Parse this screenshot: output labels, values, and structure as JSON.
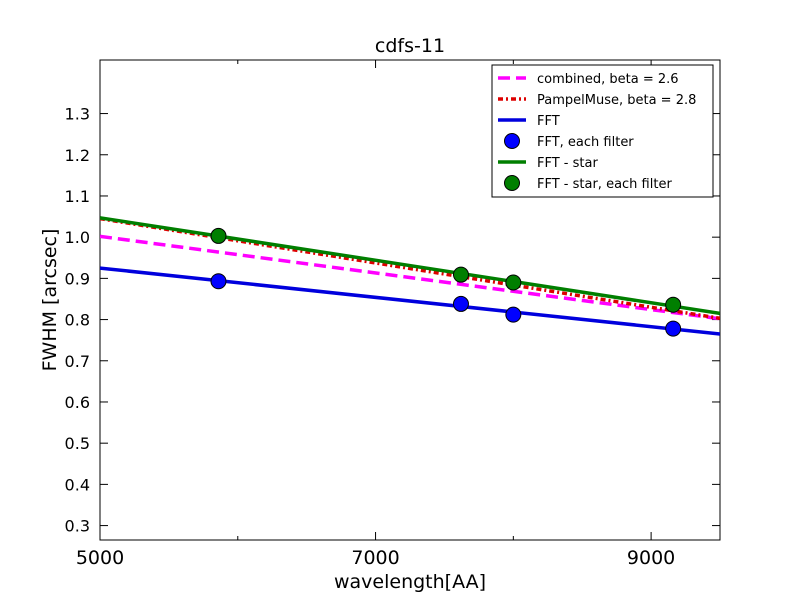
{
  "chart_data": {
    "type": "line",
    "title": "cdfs-11",
    "xlabel": "wavelength[AA]",
    "ylabel": "FWHM [arcsec]",
    "xlim": [
      5000,
      9500
    ],
    "ylim": [
      0.265,
      1.43
    ],
    "xticks": [
      5000,
      7000,
      9000
    ],
    "yticks": [
      0.3,
      0.4,
      0.5,
      0.6,
      0.7,
      0.8,
      0.9,
      1.0,
      1.1,
      1.2,
      1.3
    ],
    "grid": false,
    "legend_position": "top-right",
    "series": [
      {
        "name": "combined, beta = 2.6",
        "style": "dashed",
        "color": "#ff00ff",
        "marker": "none",
        "x": [
          5000,
          9500
        ],
        "y": [
          1.002,
          0.802
        ]
      },
      {
        "name": "PampelMuse, beta = 2.8",
        "style": "dashdot",
        "color": "#dd0000",
        "marker": "none",
        "x": [
          5000,
          9500
        ],
        "y": [
          1.045,
          0.803
        ]
      },
      {
        "name": "FFT",
        "style": "solid",
        "color": "#0000dd",
        "marker": "none",
        "x": [
          5000,
          9500
        ],
        "y": [
          0.925,
          0.765
        ]
      },
      {
        "name": "FFT, each filter",
        "style": "markers",
        "color": "#0000ff",
        "marker": "circle",
        "x": [
          5860,
          7620,
          8000,
          9160
        ],
        "y": [
          0.893,
          0.838,
          0.812,
          0.778
        ]
      },
      {
        "name": "FFT - star",
        "style": "solid",
        "color": "#007f00",
        "marker": "none",
        "x": [
          5000,
          9500
        ],
        "y": [
          1.047,
          0.815
        ]
      },
      {
        "name": "FFT - star, each filter",
        "style": "markers",
        "color": "#007f00",
        "marker": "circle",
        "x": [
          5860,
          7620,
          8000,
          9160
        ],
        "y": [
          1.003,
          0.909,
          0.89,
          0.836
        ]
      }
    ]
  }
}
